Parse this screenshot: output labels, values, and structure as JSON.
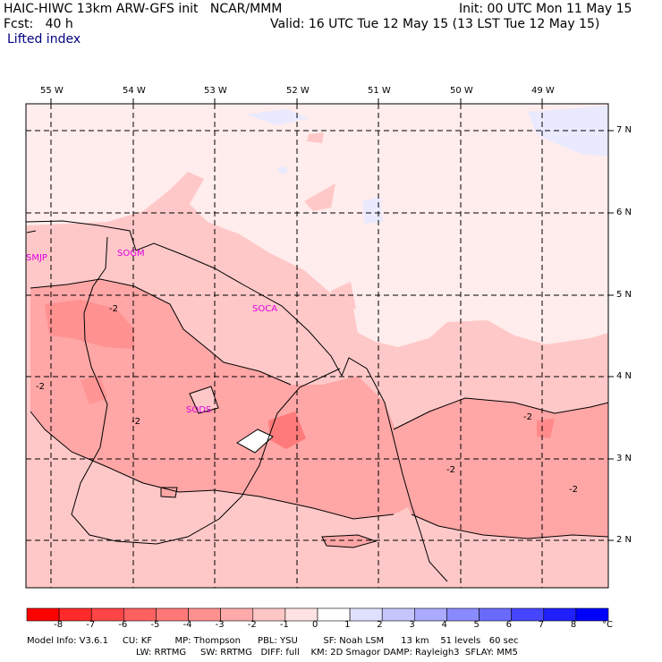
{
  "header": {
    "line1_left": "HAIC-HIWC 13km ARW-GFS init   NCAR/MMM",
    "line1_right": "Init: 00 UTC Mon 11 May 15",
    "line2_left": "Fcst:   40 h",
    "line2_right": "Valid: 16 UTC Tue 12 May 15 (13 LST Tue 12 May 15)",
    "field_name": "Lifted index"
  },
  "map": {
    "lon_labels": [
      "55 W",
      "54 W",
      "53 W",
      "52 W",
      "51 W",
      "50 W",
      "49 W"
    ],
    "lat_labels": [
      "7 N",
      "6 N",
      "5 N",
      "4 N",
      "3 N",
      "2 N"
    ],
    "stations": [
      "SMJP",
      "SOGM",
      "SOCA",
      "SODS"
    ],
    "contour_labels": [
      "-2",
      "-2",
      "-2",
      "-2",
      "-2",
      "-2"
    ]
  },
  "colorbar": {
    "labels": [
      "-8",
      "-7",
      "-6",
      "-5",
      "-4",
      "-3",
      "-2",
      "-1",
      "0",
      "1",
      "2",
      "3",
      "4",
      "5",
      "6",
      "7",
      "8"
    ],
    "unit": "°C",
    "colors": [
      "#ff0000",
      "#ff2a2a",
      "#ff4545",
      "#ff6060",
      "#ff7878",
      "#ff9090",
      "#ffaaaa",
      "#ffc6c6",
      "#ffe3e3",
      "#ffffff",
      "#e0e0ff",
      "#c6c6ff",
      "#aaaaff",
      "#8a8aff",
      "#6a6aff",
      "#4545ff",
      "#2020ff",
      "#0000ff"
    ]
  },
  "footer": {
    "line1": "Model Info: V3.6.1     CU: KF        MP: Thompson      PBL: YSU         SF: Noah LSM      13 km    51 levels   60 sec",
    "line2": "LW: RRTMG     SW: RRTMG   DIFF: full    KM: 2D Smagor DAMP: Rayleigh3  SFLAY: MM5"
  }
}
